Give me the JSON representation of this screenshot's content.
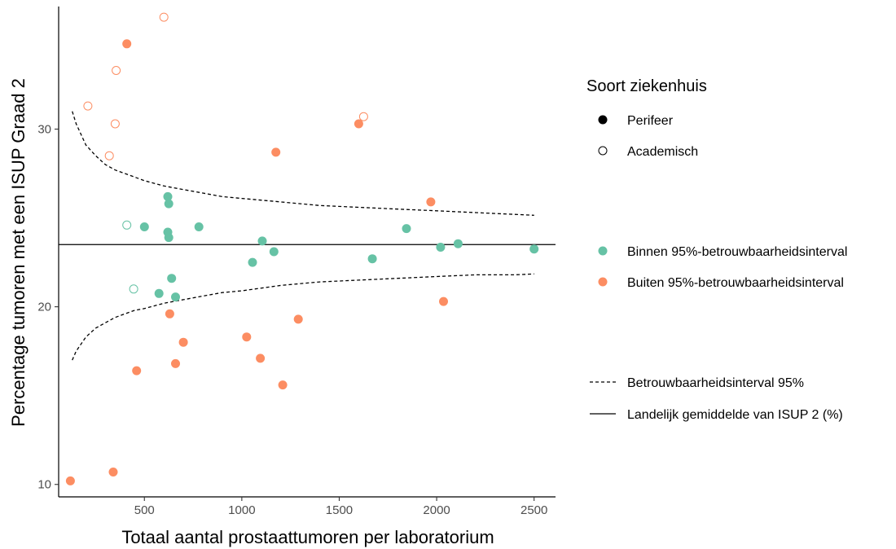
{
  "chart_data": {
    "type": "scatter",
    "xlabel": "Totaal aantal prostaattumoren per laboratorium",
    "ylabel": "Percentage tumoren met een ISUP Graad 2",
    "xlim": [
      60,
      2610
    ],
    "ylim": [
      9.3,
      36.9
    ],
    "xticks": [
      500,
      1000,
      1500,
      2000,
      2500
    ],
    "yticks": [
      10,
      20,
      30
    ],
    "grid": false,
    "legend_placement": "right",
    "colors": {
      "binnen": "#66c2a5",
      "buiten": "#fc8d62",
      "line": "#000000"
    },
    "national_mean": 23.5,
    "ci_upper": {
      "x": [
        130,
        150,
        200,
        250,
        300,
        350,
        400,
        450,
        500,
        600,
        700,
        800,
        900,
        1000,
        1200,
        1400,
        1600,
        1800,
        2000,
        2200,
        2400,
        2500
      ],
      "y": [
        31.0,
        30.3,
        29.1,
        28.5,
        28.0,
        27.7,
        27.5,
        27.3,
        27.1,
        26.8,
        26.6,
        26.4,
        26.2,
        26.1,
        25.9,
        25.7,
        25.6,
        25.5,
        25.4,
        25.3,
        25.2,
        25.15
      ]
    },
    "ci_lower": {
      "x": [
        130,
        150,
        200,
        250,
        300,
        350,
        400,
        450,
        500,
        600,
        700,
        800,
        900,
        1000,
        1200,
        1400,
        1600,
        1800,
        2000,
        2200,
        2400,
        2500
      ],
      "y": [
        17.0,
        17.5,
        18.3,
        18.8,
        19.1,
        19.4,
        19.6,
        19.8,
        19.9,
        20.2,
        20.4,
        20.6,
        20.8,
        20.9,
        21.2,
        21.4,
        21.5,
        21.6,
        21.7,
        21.8,
        21.8,
        21.85
      ]
    },
    "points": [
      {
        "x": 210,
        "y": 31.3,
        "type": "academisch",
        "group": "buiten"
      },
      {
        "x": 320,
        "y": 28.5,
        "type": "academisch",
        "group": "buiten"
      },
      {
        "x": 350,
        "y": 30.3,
        "type": "academisch",
        "group": "buiten"
      },
      {
        "x": 355,
        "y": 33.3,
        "type": "academisch",
        "group": "buiten"
      },
      {
        "x": 600,
        "y": 36.3,
        "type": "academisch",
        "group": "buiten"
      },
      {
        "x": 1625,
        "y": 30.7,
        "type": "academisch",
        "group": "buiten"
      },
      {
        "x": 410,
        "y": 24.6,
        "type": "academisch",
        "group": "binnen"
      },
      {
        "x": 445,
        "y": 21.0,
        "type": "academisch",
        "group": "binnen"
      },
      {
        "x": 410,
        "y": 34.8,
        "type": "perifeer",
        "group": "buiten"
      },
      {
        "x": 1600,
        "y": 30.3,
        "type": "perifeer",
        "group": "buiten"
      },
      {
        "x": 1175,
        "y": 28.7,
        "type": "perifeer",
        "group": "buiten"
      },
      {
        "x": 1970,
        "y": 25.9,
        "type": "perifeer",
        "group": "buiten"
      },
      {
        "x": 2035,
        "y": 20.3,
        "type": "perifeer",
        "group": "buiten"
      },
      {
        "x": 630,
        "y": 19.6,
        "type": "perifeer",
        "group": "buiten"
      },
      {
        "x": 700,
        "y": 18.0,
        "type": "perifeer",
        "group": "buiten"
      },
      {
        "x": 1025,
        "y": 18.3,
        "type": "perifeer",
        "group": "buiten"
      },
      {
        "x": 1290,
        "y": 19.3,
        "type": "perifeer",
        "group": "buiten"
      },
      {
        "x": 1095,
        "y": 17.1,
        "type": "perifeer",
        "group": "buiten"
      },
      {
        "x": 660,
        "y": 16.8,
        "type": "perifeer",
        "group": "buiten"
      },
      {
        "x": 460,
        "y": 16.4,
        "type": "perifeer",
        "group": "buiten"
      },
      {
        "x": 1210,
        "y": 15.6,
        "type": "perifeer",
        "group": "buiten"
      },
      {
        "x": 340,
        "y": 10.7,
        "type": "perifeer",
        "group": "buiten"
      },
      {
        "x": 120,
        "y": 10.2,
        "type": "perifeer",
        "group": "buiten"
      },
      {
        "x": 620,
        "y": 26.2,
        "type": "perifeer",
        "group": "binnen"
      },
      {
        "x": 625,
        "y": 25.8,
        "type": "perifeer",
        "group": "binnen"
      },
      {
        "x": 500,
        "y": 24.5,
        "type": "perifeer",
        "group": "binnen"
      },
      {
        "x": 780,
        "y": 24.5,
        "type": "perifeer",
        "group": "binnen"
      },
      {
        "x": 620,
        "y": 24.2,
        "type": "perifeer",
        "group": "binnen"
      },
      {
        "x": 625,
        "y": 23.9,
        "type": "perifeer",
        "group": "binnen"
      },
      {
        "x": 1105,
        "y": 23.7,
        "type": "perifeer",
        "group": "binnen"
      },
      {
        "x": 1055,
        "y": 22.5,
        "type": "perifeer",
        "group": "binnen"
      },
      {
        "x": 1165,
        "y": 23.1,
        "type": "perifeer",
        "group": "binnen"
      },
      {
        "x": 1670,
        "y": 22.7,
        "type": "perifeer",
        "group": "binnen"
      },
      {
        "x": 1845,
        "y": 24.4,
        "type": "perifeer",
        "group": "binnen"
      },
      {
        "x": 2020,
        "y": 23.35,
        "type": "perifeer",
        "group": "binnen"
      },
      {
        "x": 2110,
        "y": 23.55,
        "type": "perifeer",
        "group": "binnen"
      },
      {
        "x": 2500,
        "y": 23.25,
        "type": "perifeer",
        "group": "binnen"
      },
      {
        "x": 640,
        "y": 21.6,
        "type": "perifeer",
        "group": "binnen"
      },
      {
        "x": 575,
        "y": 20.75,
        "type": "perifeer",
        "group": "binnen"
      },
      {
        "x": 660,
        "y": 20.55,
        "type": "perifeer",
        "group": "binnen"
      }
    ]
  },
  "legend": {
    "title": "Soort ziekenhuis",
    "perifeer": "Perifeer",
    "academisch": "Academisch",
    "binnen": "Binnen 95%-betrouwbaarheidsinterval",
    "buiten": "Buiten 95%-betrouwbaarheidsinterval",
    "ci": "Betrouwbaarheidsinterval 95%",
    "mean": "Landelijk gemiddelde van ISUP 2 (%)"
  }
}
